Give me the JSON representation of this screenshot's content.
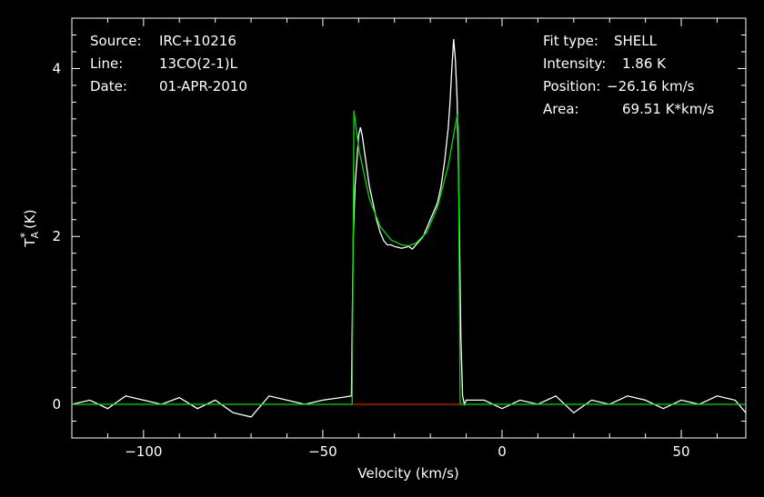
{
  "header_left": [
    {
      "label": "Source:",
      "value": "IRC+10216"
    },
    {
      "label": "Line:",
      "value": "13CO(2-1)L"
    },
    {
      "label": "Date:",
      "value": "01-APR-2010"
    }
  ],
  "header_right": [
    {
      "label": "Fit type:",
      "value": "SHELL"
    },
    {
      "label": "Intensity:",
      "value": "1.86 K"
    },
    {
      "label": "Position:",
      "value": "−26.16 km/s"
    },
    {
      "label": "Area:",
      "value": "69.51 K*km/s"
    }
  ],
  "chart_data": {
    "type": "line",
    "xlabel": "Velocity (km/s)",
    "ylabel": "T",
    "ylabel_sup": "*",
    "ylabel_sub": "A",
    "ylabel_unit": "(K)",
    "xlim": [
      -120,
      68
    ],
    "ylim": [
      -0.4,
      4.6
    ],
    "xticks": [
      -100,
      -50,
      0,
      50
    ],
    "xtick_labels": [
      "−100",
      "−50",
      "0",
      "50"
    ],
    "yticks": [
      0,
      2,
      4
    ],
    "ytick_labels": [
      "0",
      "2",
      "4"
    ],
    "colors": {
      "data": "#ffffff",
      "fit": "#00dd00",
      "baseline": "#cc2200",
      "axes": "#ffffff",
      "background": "#000000"
    },
    "series": [
      {
        "role": "spectrum",
        "x": [
          -120,
          -115,
          -110,
          -105,
          -100,
          -95,
          -90,
          -85,
          -80,
          -75,
          -70,
          -65,
          -60,
          -55,
          -50,
          -45,
          -42,
          -41.5,
          -41,
          -40,
          -39.5,
          -39,
          -38,
          -37,
          -36,
          -35,
          -34,
          -33,
          -32,
          -31,
          -30,
          -29,
          -28,
          -27,
          -26,
          -25,
          -24,
          -23,
          -22,
          -21,
          -20,
          -19,
          -18,
          -17,
          -16,
          -15,
          -14.5,
          -14,
          -13.5,
          -13,
          -12.5,
          -12,
          -11.5,
          -11,
          -10.5,
          -10,
          -5,
          0,
          5,
          10,
          15,
          20,
          25,
          30,
          35,
          40,
          45,
          50,
          55,
          60,
          65,
          68
        ],
        "y": [
          0.0,
          0.05,
          -0.05,
          0.1,
          0.05,
          0.0,
          0.08,
          -0.05,
          0.05,
          -0.1,
          -0.15,
          0.1,
          0.05,
          0.0,
          0.05,
          0.08,
          0.1,
          2.0,
          2.6,
          3.2,
          3.3,
          3.2,
          2.9,
          2.6,
          2.4,
          2.2,
          2.05,
          1.95,
          1.9,
          1.9,
          1.88,
          1.87,
          1.86,
          1.87,
          1.88,
          1.85,
          1.9,
          1.95,
          2.0,
          2.1,
          2.2,
          2.3,
          2.4,
          2.6,
          2.9,
          3.3,
          3.6,
          4.0,
          4.35,
          4.1,
          3.6,
          2.4,
          0.8,
          0.1,
          0.0,
          0.05,
          0.05,
          -0.05,
          0.05,
          0.0,
          0.1,
          -0.1,
          0.05,
          0.0,
          0.1,
          0.05,
          -0.05,
          0.05,
          0.0,
          0.1,
          0.05,
          -0.1
        ]
      },
      {
        "role": "fit",
        "x": [
          -120,
          -41.8,
          -41.3,
          -40,
          -37,
          -34,
          -31,
          -28,
          -26,
          -24,
          -21,
          -18,
          -15,
          -12.5,
          -12.2,
          -11.7,
          68
        ],
        "y": [
          0,
          0,
          3.5,
          3.05,
          2.45,
          2.12,
          1.96,
          1.9,
          1.89,
          1.92,
          2.05,
          2.35,
          2.85,
          3.45,
          3.3,
          0,
          0
        ]
      },
      {
        "role": "baseline",
        "x": [
          -41.8,
          -11.7
        ],
        "y": [
          0,
          0
        ]
      }
    ]
  }
}
